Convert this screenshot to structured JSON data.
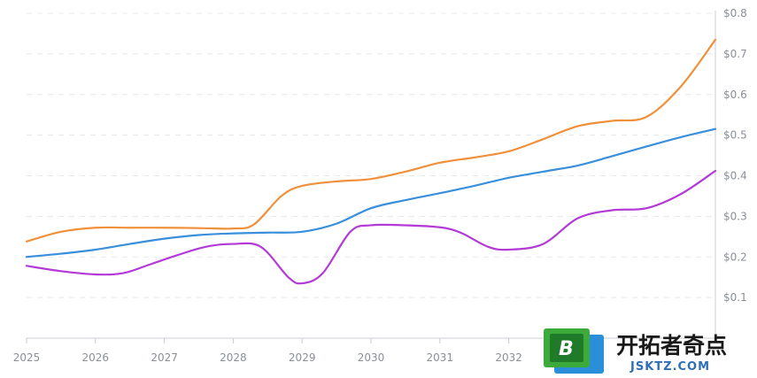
{
  "chart_data": {
    "type": "line",
    "x": [
      "2025",
      "2025.5",
      "2026",
      "2026.5",
      "2027",
      "2027.5",
      "2028",
      "2028.5",
      "2029",
      "2029.5",
      "2030",
      "2030.5",
      "2031",
      "2031.5",
      "2032",
      "2032.5",
      "2033",
      "2033.5",
      "2034",
      "2034.5",
      "2035"
    ],
    "x_tick_labels": [
      "2025",
      "2026",
      "2027",
      "2028",
      "2029",
      "2030",
      "2031",
      "2032"
    ],
    "y_tick_labels": [
      "$0.1",
      "$0.2",
      "$0.3",
      "$0.4",
      "$0.5",
      "$0.6",
      "$0.7",
      "$0.8"
    ],
    "y_ticks": [
      0.1,
      0.2,
      0.3,
      0.4,
      0.5,
      0.6,
      0.7,
      0.8
    ],
    "xlim": [
      2025,
      2035
    ],
    "ylim": [
      0,
      0.8
    ],
    "y_axis_position": "right",
    "grid": true,
    "series": [
      {
        "color": "#f0903a",
        "x": [
          2025,
          2025.5,
          2026,
          2026.5,
          2027,
          2027.5,
          2028,
          2028.3,
          2028.7,
          2029,
          2029.5,
          2030,
          2030.5,
          2031,
          2031.5,
          2032,
          2032.5,
          2033,
          2033.5,
          2034,
          2034.5,
          2035
        ],
        "values": [
          0.238,
          0.262,
          0.272,
          0.272,
          0.272,
          0.271,
          0.27,
          0.28,
          0.35,
          0.375,
          0.386,
          0.392,
          0.41,
          0.432,
          0.445,
          0.46,
          0.49,
          0.522,
          0.535,
          0.545,
          0.62,
          0.735
        ]
      },
      {
        "color": "#3a8fdc",
        "x": [
          2025,
          2025.5,
          2026,
          2026.5,
          2027,
          2027.5,
          2028,
          2028.5,
          2029,
          2029.5,
          2030,
          2030.5,
          2031,
          2031.5,
          2032,
          2032.5,
          2033,
          2033.5,
          2034,
          2034.5,
          2035
        ],
        "values": [
          0.2,
          0.208,
          0.218,
          0.232,
          0.245,
          0.254,
          0.258,
          0.26,
          0.262,
          0.282,
          0.32,
          0.34,
          0.357,
          0.375,
          0.395,
          0.41,
          0.425,
          0.448,
          0.472,
          0.495,
          0.515
        ]
      },
      {
        "color": "#b33ad6",
        "x": [
          2025,
          2025.5,
          2026,
          2026.4,
          2026.8,
          2027.2,
          2027.6,
          2028,
          2028.4,
          2028.8,
          2029,
          2029.3,
          2029.7,
          2030,
          2030.5,
          2031,
          2031.3,
          2031.7,
          2032,
          2032.5,
          2033,
          2033.5,
          2034,
          2034.5,
          2035
        ],
        "values": [
          0.178,
          0.165,
          0.157,
          0.16,
          0.182,
          0.205,
          0.225,
          0.232,
          0.225,
          0.15,
          0.135,
          0.16,
          0.262,
          0.278,
          0.278,
          0.273,
          0.26,
          0.225,
          0.218,
          0.232,
          0.295,
          0.315,
          0.32,
          0.355,
          0.412
        ]
      }
    ]
  },
  "watermark": {
    "badge_letter": "B",
    "cn_text": "开拓者奇点",
    "en_text": "JSKTZ.COM",
    "colors": {
      "green": "#3cab3c",
      "blue": "#2a8fd8",
      "dark_green": "#1f7a2a"
    }
  }
}
